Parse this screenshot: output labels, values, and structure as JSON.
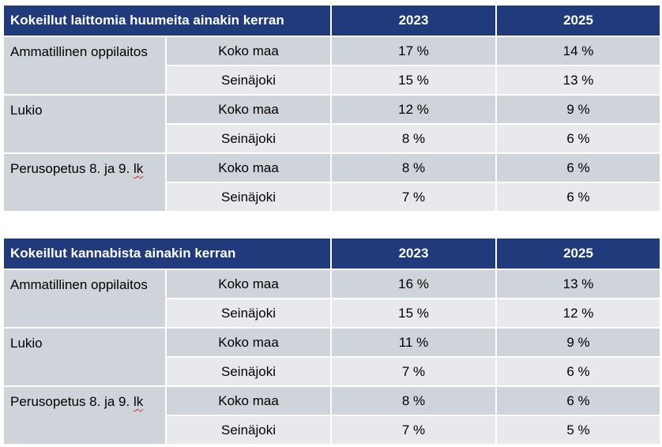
{
  "tables": [
    {
      "title": "Kokeillut laittomia huumeita ainakin kerran",
      "years": [
        "2023",
        "2025"
      ],
      "groups": [
        {
          "name": "Ammatillinen oppilaitos",
          "rows": [
            {
              "region": "Koko maa",
              "values": [
                "17 %",
                "14 %"
              ]
            },
            {
              "region": "Seinäjoki",
              "values": [
                "15 %",
                "13 %"
              ]
            }
          ]
        },
        {
          "name": "Lukio",
          "rows": [
            {
              "region": "Koko maa",
              "values": [
                "12 %",
                "9 %"
              ]
            },
            {
              "region": "Seinäjoki",
              "values": [
                "8 %",
                "6 %"
              ]
            }
          ]
        },
        {
          "name_main": "Perusopetus 8. ja 9. ",
          "name_suffix": "lk",
          "rows": [
            {
              "region": "Koko maa",
              "values": [
                "8 %",
                "6 %"
              ]
            },
            {
              "region": "Seinäjoki",
              "values": [
                "7 %",
                "6 %"
              ]
            }
          ]
        }
      ]
    },
    {
      "title": "Kokeillut kannabista ainakin kerran",
      "years": [
        "2023",
        "2025"
      ],
      "groups": [
        {
          "name": "Ammatillinen oppilaitos",
          "rows": [
            {
              "region": "Koko maa",
              "values": [
                "16 %",
                "13 %"
              ]
            },
            {
              "region": "Seinäjoki",
              "values": [
                "15 %",
                "12 %"
              ]
            }
          ]
        },
        {
          "name": "Lukio",
          "rows": [
            {
              "region": "Koko maa",
              "values": [
                "11 %",
                "9 %"
              ]
            },
            {
              "region": "Seinäjoki",
              "values": [
                "7 %",
                "6 %"
              ]
            }
          ]
        },
        {
          "name_main": "Perusopetus 8. ja 9. ",
          "name_suffix": "lk",
          "rows": [
            {
              "region": "Koko maa",
              "values": [
                "8 %",
                "6 %"
              ]
            },
            {
              "region": "Seinäjoki",
              "values": [
                "7 %",
                "5 %"
              ]
            }
          ]
        }
      ]
    }
  ],
  "colors": {
    "header_bg": "#203a7c",
    "header_text": "#ffffff",
    "row_dark": "#cfd3da",
    "row_light": "#e8e9ed",
    "spellcheck_underline": "#d9302c"
  }
}
